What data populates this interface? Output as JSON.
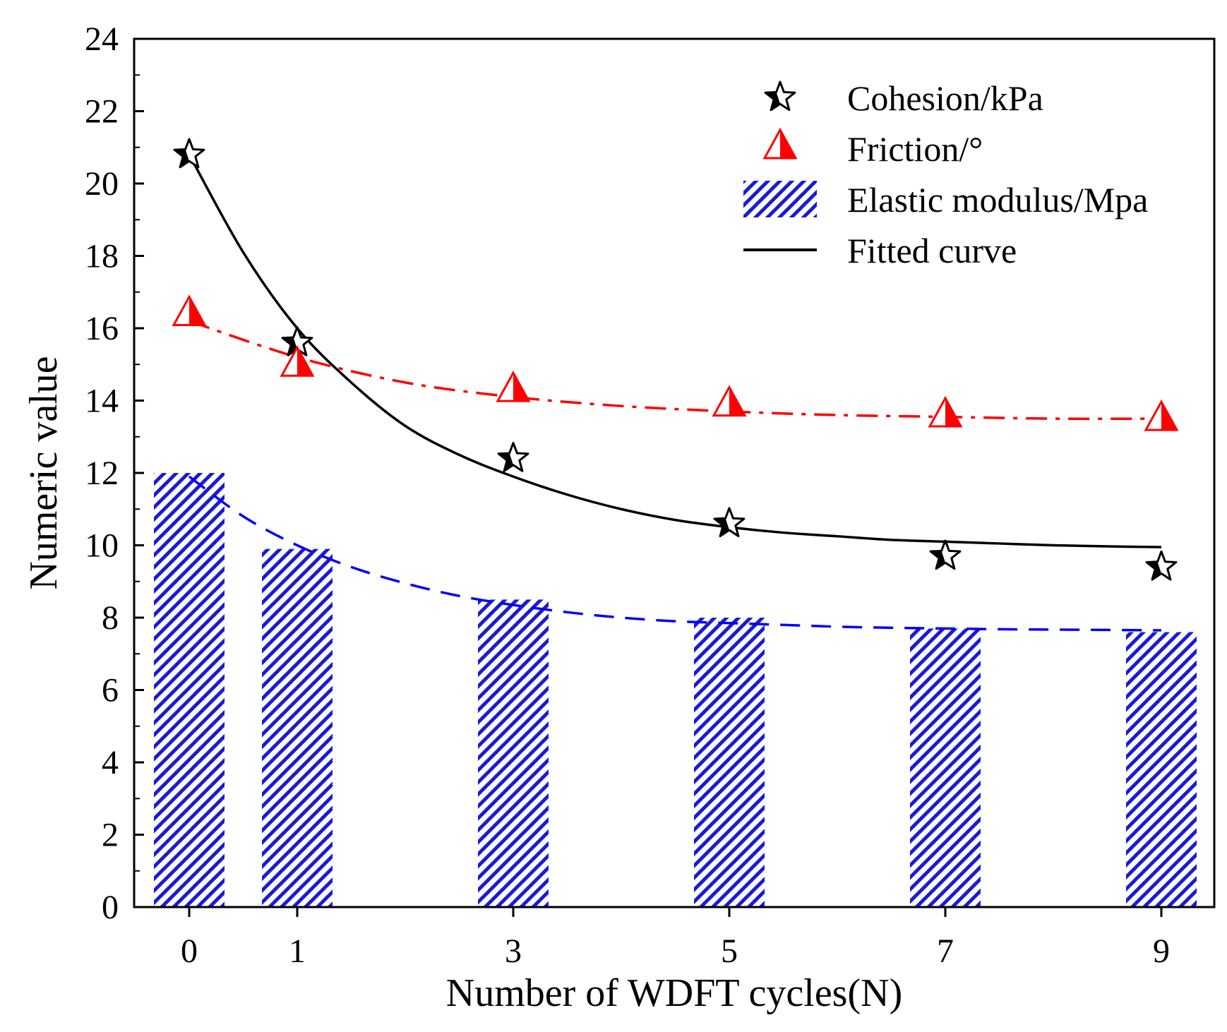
{
  "chart_data": {
    "type": "bar",
    "title": "",
    "xlabel": "Number of WDFT  cycles(N)",
    "ylabel": "Numeric value",
    "ylim": [
      0,
      24
    ],
    "xlim": [
      -0.5,
      9.5
    ],
    "yticks": [
      "0",
      "2",
      "4",
      "6",
      "8",
      "10",
      "12",
      "14",
      "16",
      "18",
      "20",
      "22",
      "24"
    ],
    "categories": [
      "0",
      "1",
      "3",
      "5",
      "7",
      "9"
    ],
    "x": [
      0,
      1,
      3,
      5,
      7,
      9
    ],
    "grid": false,
    "legend_position": "top-right",
    "series": [
      {
        "name": "Cohesion/kPa",
        "kind": "scatter",
        "marker": "star",
        "color": "#000000",
        "values": [
          20.8,
          15.6,
          12.4,
          10.6,
          9.7,
          9.4
        ]
      },
      {
        "name": "Friction/°",
        "kind": "scatter",
        "marker": "triangle",
        "color": "#ff0000",
        "values": [
          16.4,
          15.0,
          14.3,
          13.9,
          13.6,
          13.5
        ]
      },
      {
        "name": "Elastic modulus/Mpa",
        "kind": "bar",
        "pattern": "hatch",
        "color": "#0000ff",
        "values": [
          12.0,
          9.9,
          8.5,
          8.0,
          7.7,
          7.6
        ]
      },
      {
        "name": "Fitted curve",
        "kind": "line",
        "color": "#000000",
        "dash": "solid",
        "x": [
          0,
          0.5,
          1,
          1.5,
          2,
          2.5,
          3,
          3.5,
          4,
          4.5,
          5,
          5.5,
          6,
          6.5,
          7,
          7.5,
          8,
          8.5,
          9
        ],
        "values": [
          20.8,
          18.1,
          16.0,
          14.5,
          13.3,
          12.5,
          11.9,
          11.4,
          11.0,
          10.7,
          10.5,
          10.35,
          10.25,
          10.15,
          10.1,
          10.05,
          10.0,
          9.97,
          9.95
        ]
      }
    ],
    "fitted_curves": [
      {
        "for": "Friction/°",
        "color": "#ff0000",
        "dash": "dash-dot",
        "x": [
          0,
          1,
          2,
          3,
          4,
          5,
          6,
          7,
          8,
          9
        ],
        "values": [
          16.2,
          15.2,
          14.5,
          14.1,
          13.85,
          13.7,
          13.6,
          13.55,
          13.5,
          13.5
        ]
      },
      {
        "for": "Elastic modulus/Mpa",
        "color": "#0000ff",
        "dash": "dashed",
        "x": [
          0,
          0.5,
          1,
          1.5,
          2,
          2.5,
          3,
          3.5,
          4,
          4.5,
          5,
          5.5,
          6,
          6.5,
          7,
          7.5,
          8,
          8.5,
          9
        ],
        "values": [
          11.9,
          10.8,
          10.0,
          9.4,
          8.95,
          8.6,
          8.35,
          8.15,
          8.0,
          7.9,
          7.85,
          7.8,
          7.75,
          7.72,
          7.7,
          7.68,
          7.67,
          7.66,
          7.65
        ]
      }
    ]
  }
}
